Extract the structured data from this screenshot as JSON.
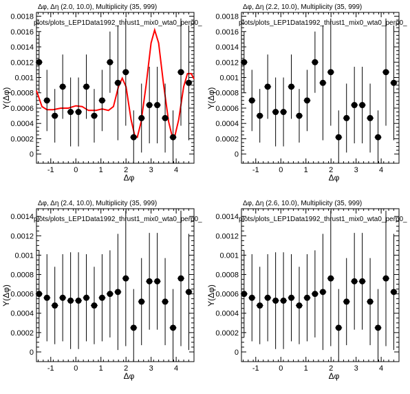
{
  "chart_data": [
    {
      "type": "scatter",
      "title": "Δφ, Δη (2.0, 10.0), Multiplicity (35, 999)",
      "subtitle": "plots/plots_LEP1Data1992_thrust1_mix0_wta0_perp0_",
      "xlabel": "Δφ",
      "ylabel": "Y(Δφ)",
      "xlim": [
        -1.57,
        4.71
      ],
      "ylim": [
        -0.00012,
        0.00185
      ],
      "xticks": [
        -1,
        0,
        1,
        2,
        3,
        4
      ],
      "yticks": [
        0,
        0.0002,
        0.0004,
        0.0006,
        0.0008,
        0.001,
        0.0012,
        0.0014,
        0.0016,
        0.0018
      ],
      "ytick_labels": [
        "0",
        "0.0002",
        "0.0004",
        "0.0006",
        "0.0008",
        "0.001",
        "0.0012",
        "0.0014",
        "0.0016",
        "0.0018"
      ],
      "x": [
        -1.466,
        -1.152,
        -0.838,
        -0.524,
        -0.209,
        0.105,
        0.419,
        0.733,
        1.047,
        1.361,
        1.676,
        1.99,
        2.304,
        2.618,
        2.932,
        3.246,
        3.56,
        3.875,
        4.189,
        4.503
      ],
      "y": [
        0.0012,
        0.0007,
        0.0005,
        0.00088,
        0.00055,
        0.00055,
        0.00088,
        0.0005,
        0.0007,
        0.0012,
        0.00093,
        0.00107,
        0.00022,
        0.00047,
        0.00064,
        0.00064,
        0.00047,
        0.00022,
        0.00107,
        0.00093
      ],
      "yerr": [
        0.0004,
        0.0004,
        0.00035,
        0.00042,
        0.00045,
        0.00045,
        0.00042,
        0.00035,
        0.0004,
        0.0004,
        0.00075,
        0.0007,
        0.00035,
        0.00045,
        0.0005,
        0.0005,
        0.00045,
        0.00035,
        0.0007,
        0.00075
      ],
      "series": [
        {
          "name": "",
          "color": "#ff0000"
        }
      ],
      "fit": {
        "x": [
          -1.57,
          -1.35,
          -1.15,
          -0.9,
          -0.6,
          -0.3,
          0.0,
          0.25,
          0.5,
          0.8,
          1.05,
          1.3,
          1.5,
          1.7,
          1.85,
          2.0,
          2.2,
          2.35,
          2.45,
          2.6,
          2.8,
          3.0,
          3.14,
          3.3,
          3.5,
          3.7,
          3.85,
          3.95,
          4.1,
          4.3,
          4.45,
          4.6,
          4.71
        ],
        "y": [
          0.00083,
          0.00062,
          0.00058,
          0.00058,
          0.0006,
          0.0006,
          0.00063,
          0.00062,
          0.00057,
          0.00057,
          0.00059,
          0.00057,
          0.00062,
          0.00088,
          0.00099,
          0.00088,
          0.00045,
          0.00024,
          0.00022,
          0.00042,
          0.0009,
          0.00145,
          0.00162,
          0.00145,
          0.0009,
          0.00042,
          0.00022,
          0.00024,
          0.00045,
          0.00088,
          0.00105,
          0.00105,
          0.00098
        ]
      }
    },
    {
      "type": "scatter",
      "title": "Δφ, Δη (2.2, 10.0), Multiplicity (35, 999)",
      "subtitle": "plots/plots_LEP1Data1992_thrust1_mix0_wta0_perp0_",
      "xlabel": "Δφ",
      "ylabel": "Y(Δφ)",
      "xlim": [
        -1.57,
        4.71
      ],
      "ylim": [
        -0.00012,
        0.00185
      ],
      "xticks": [
        -1,
        0,
        1,
        2,
        3,
        4
      ],
      "yticks": [
        0,
        0.0002,
        0.0004,
        0.0006,
        0.0008,
        0.001,
        0.0012,
        0.0014,
        0.0016,
        0.0018
      ],
      "ytick_labels": [
        "0",
        "0.0002",
        "0.0004",
        "0.0006",
        "0.0008",
        "0.001",
        "0.0012",
        "0.0014",
        "0.0016",
        "0.0018"
      ],
      "x": [
        -1.466,
        -1.152,
        -0.838,
        -0.524,
        -0.209,
        0.105,
        0.419,
        0.733,
        1.047,
        1.361,
        1.676,
        1.99,
        2.304,
        2.618,
        2.932,
        3.246,
        3.56,
        3.875,
        4.189,
        4.503
      ],
      "y": [
        0.0012,
        0.0007,
        0.0005,
        0.00088,
        0.00055,
        0.00055,
        0.00088,
        0.0005,
        0.0007,
        0.0012,
        0.00093,
        0.00107,
        0.00022,
        0.00047,
        0.00064,
        0.00064,
        0.00047,
        0.00022,
        0.00107,
        0.00093
      ],
      "yerr": [
        0.0004,
        0.0004,
        0.00035,
        0.00042,
        0.00045,
        0.00045,
        0.00042,
        0.00035,
        0.0004,
        0.0004,
        0.00075,
        0.0007,
        0.00035,
        0.00045,
        0.0005,
        0.0005,
        0.00045,
        0.00035,
        0.0007,
        0.00075
      ]
    },
    {
      "type": "scatter",
      "title": "Δφ, Δη (2.4, 10.0), Multiplicity (35, 999)",
      "subtitle": "plots/plots_LEP1Data1992_thrust1_mix0_wta0_perp0_",
      "xlabel": "Δφ",
      "ylabel": "Y(Δφ)",
      "xlim": [
        -1.57,
        4.71
      ],
      "ylim": [
        -0.0001,
        0.00148
      ],
      "xticks": [
        -1,
        0,
        1,
        2,
        3,
        4
      ],
      "yticks": [
        0,
        0.0002,
        0.0004,
        0.0006,
        0.0008,
        0.001,
        0.0012,
        0.0014
      ],
      "ytick_labels": [
        "0",
        "0.0002",
        "0.0004",
        "0.0006",
        "0.0008",
        "0.001",
        "0.0012",
        "0.0014"
      ],
      "x": [
        -1.466,
        -1.152,
        -0.838,
        -0.524,
        -0.209,
        0.105,
        0.419,
        0.733,
        1.047,
        1.361,
        1.676,
        1.99,
        2.304,
        2.618,
        2.932,
        3.246,
        3.56,
        3.875,
        4.189,
        4.503
      ],
      "y": [
        0.0006,
        0.00056,
        0.00048,
        0.00056,
        0.00053,
        0.00053,
        0.00056,
        0.00048,
        0.00056,
        0.0006,
        0.00062,
        0.00076,
        0.00025,
        0.00052,
        0.00073,
        0.00073,
        0.00052,
        0.00025,
        0.00076,
        0.00062
      ],
      "yerr": [
        0.00045,
        0.00045,
        0.0004,
        0.00045,
        0.0005,
        0.0005,
        0.00045,
        0.0004,
        0.00045,
        0.00045,
        0.0006,
        0.0007,
        0.0004,
        0.00045,
        0.0005,
        0.0005,
        0.00045,
        0.0004,
        0.0007,
        0.0006
      ]
    },
    {
      "type": "scatter",
      "title": "Δφ, Δη (2.6, 10.0), Multiplicity (35, 999)",
      "subtitle": "plots/plots_LEP1Data1992_thrust1_mix0_wta0_perp0_",
      "xlabel": "Δφ",
      "ylabel": "Y(Δφ)",
      "xlim": [
        -1.57,
        4.71
      ],
      "ylim": [
        -0.0001,
        0.00148
      ],
      "xticks": [
        -1,
        0,
        1,
        2,
        3,
        4
      ],
      "yticks": [
        0,
        0.0002,
        0.0004,
        0.0006,
        0.0008,
        0.001,
        0.0012,
        0.0014
      ],
      "ytick_labels": [
        "0",
        "0.0002",
        "0.0004",
        "0.0006",
        "0.0008",
        "0.001",
        "0.0012",
        "0.0014"
      ],
      "x": [
        -1.466,
        -1.152,
        -0.838,
        -0.524,
        -0.209,
        0.105,
        0.419,
        0.733,
        1.047,
        1.361,
        1.676,
        1.99,
        2.304,
        2.618,
        2.932,
        3.246,
        3.56,
        3.875,
        4.189,
        4.503
      ],
      "y": [
        0.0006,
        0.00056,
        0.00048,
        0.00056,
        0.00053,
        0.00053,
        0.00056,
        0.00048,
        0.00056,
        0.0006,
        0.00062,
        0.00076,
        0.00025,
        0.00052,
        0.00073,
        0.00073,
        0.00052,
        0.00025,
        0.00076,
        0.00062
      ],
      "yerr": [
        0.00045,
        0.00045,
        0.0004,
        0.00045,
        0.0005,
        0.0005,
        0.00045,
        0.0004,
        0.00045,
        0.00045,
        0.0006,
        0.0007,
        0.0004,
        0.00045,
        0.0005,
        0.0005,
        0.00045,
        0.0004,
        0.0007,
        0.0006
      ]
    }
  ]
}
